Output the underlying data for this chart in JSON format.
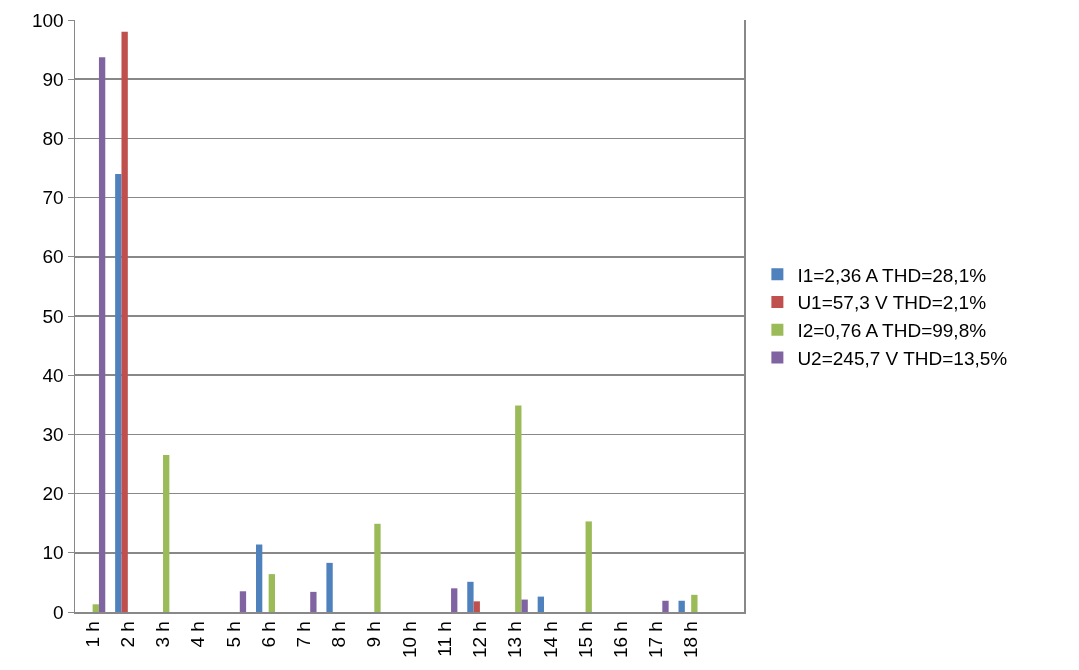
{
  "chart_data": {
    "type": "bar",
    "categories": [
      "1 h",
      "2 h",
      "3 h",
      "4 h",
      "5 h",
      "6 h",
      "7 h",
      "8 h",
      "9 h",
      "10 h",
      "11 h",
      "12 h",
      "13 h",
      "14 h",
      "15 h",
      "16 h",
      "17 h",
      "18 h",
      null
    ],
    "series": [
      {
        "name": "I1=2,36 A THD=28,1%",
        "color": "#4f81bd",
        "values": [
          0,
          74,
          0,
          0,
          0,
          11.4,
          0,
          8.3,
          0,
          0,
          0,
          5.1,
          0,
          2.6,
          0,
          0,
          0,
          1.9,
          null
        ]
      },
      {
        "name": "U1=57,3 V THD=2,1%",
        "color": "#c0504d",
        "values": [
          0,
          98,
          0,
          0,
          0,
          0,
          0,
          0,
          0,
          0,
          0,
          1.8,
          0,
          0,
          0,
          0,
          0,
          0,
          null
        ]
      },
      {
        "name": "I2=0,76 A THD=99,8%",
        "color": "#9bbb59",
        "values": [
          1.3,
          0,
          26.5,
          0,
          0,
          6.4,
          0,
          0,
          14.9,
          0,
          0,
          0,
          34.9,
          0,
          15.3,
          0,
          0,
          2.9,
          null
        ]
      },
      {
        "name": "U2=245,7 V THD=13,5%",
        "color": "#8064a2",
        "values": [
          93.7,
          0,
          0,
          0,
          3.5,
          0,
          3.4,
          0,
          0,
          0,
          4.0,
          0,
          2.1,
          0,
          0,
          0,
          1.9,
          0,
          null
        ]
      }
    ],
    "ylim": [
      0,
      100
    ],
    "yticks": [
      0,
      10,
      20,
      30,
      40,
      50,
      60,
      70,
      80,
      90,
      100
    ],
    "grid": "y",
    "legend": "right"
  }
}
